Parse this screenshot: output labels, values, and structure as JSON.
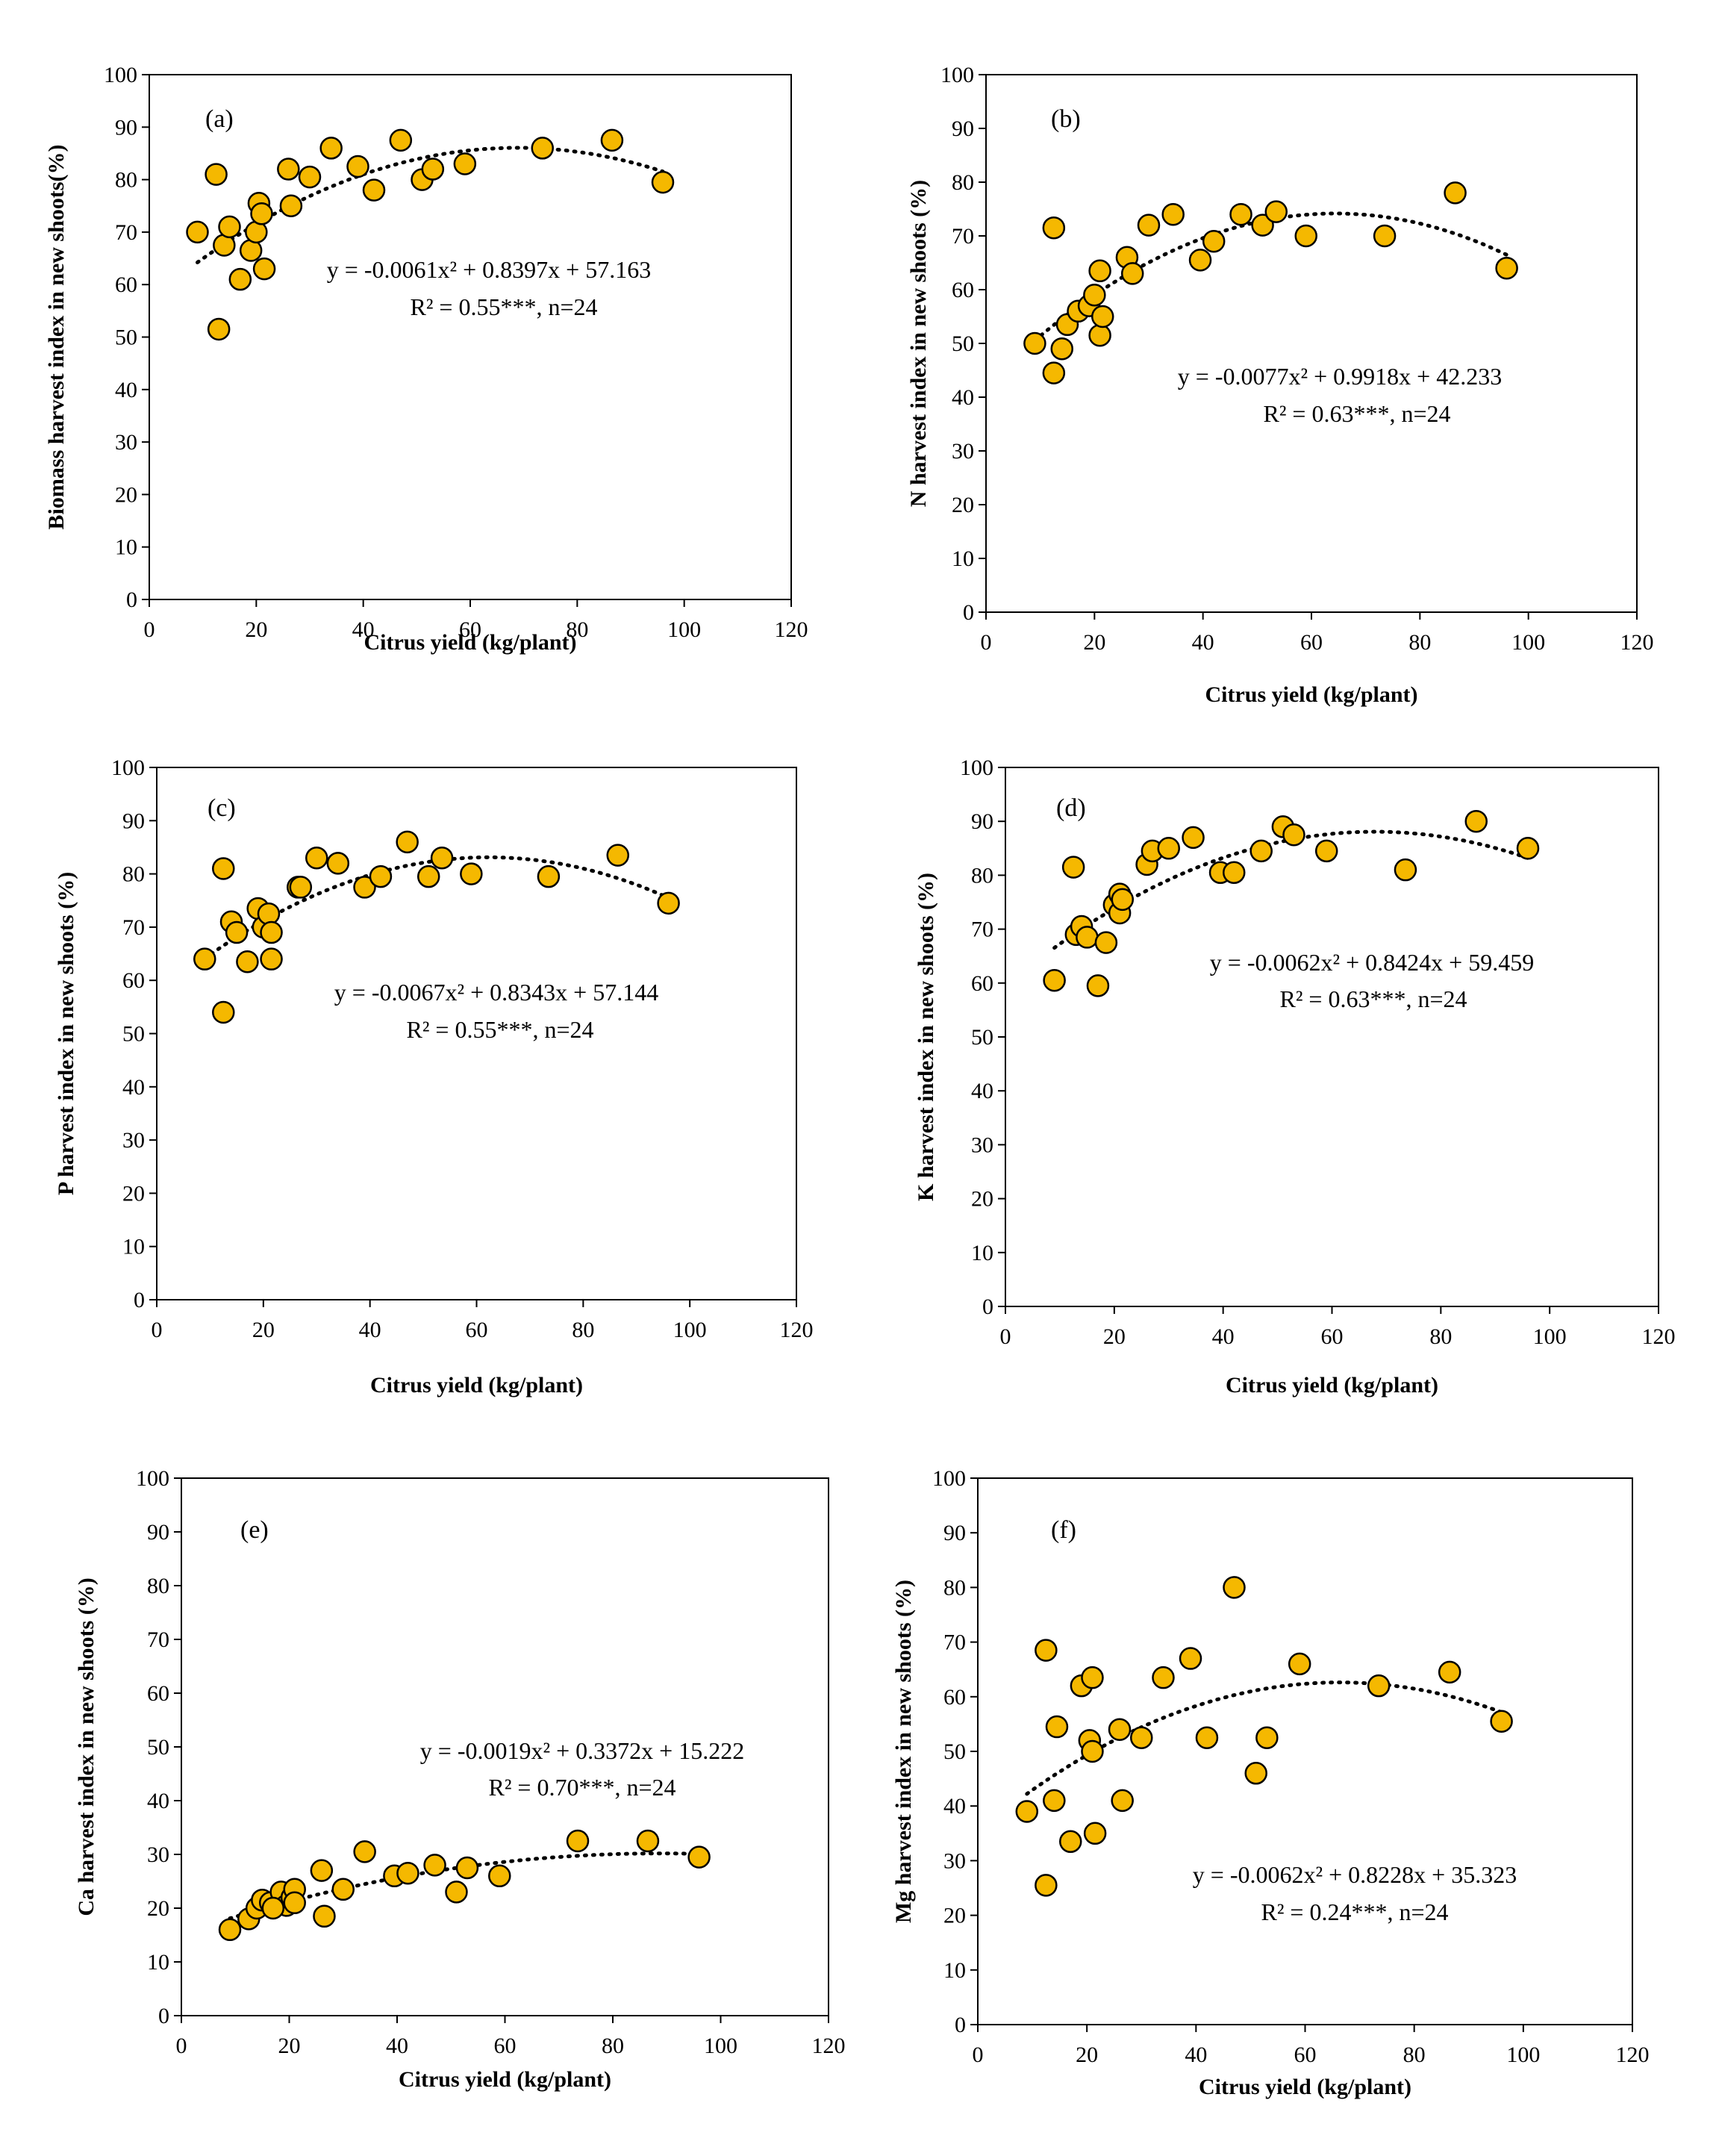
{
  "chart_data": [
    {
      "type": "scatter",
      "panel": "(a)",
      "xlabel": "Citrus yield (kg/plant)",
      "ylabel": "Biomass harvest index in new shoots(%)",
      "xlim": [
        0,
        120
      ],
      "ylim": [
        0,
        100
      ],
      "xticks": [
        0,
        20,
        40,
        60,
        80,
        100,
        120
      ],
      "yticks": [
        0,
        10,
        20,
        30,
        40,
        50,
        60,
        70,
        80,
        90,
        100
      ],
      "equation": "y = -0.0061x² + 0.8397x + 57.163",
      "r2": "R² = 0.55***, n=24",
      "fit": {
        "a": -0.0061,
        "b": 0.8397,
        "c": 57.163,
        "x_range": [
          9,
          96
        ]
      },
      "points": [
        {
          "x": 9,
          "y": 70
        },
        {
          "x": 12.5,
          "y": 81
        },
        {
          "x": 13,
          "y": 51.5
        },
        {
          "x": 14,
          "y": 67.5
        },
        {
          "x": 15,
          "y": 71
        },
        {
          "x": 17,
          "y": 61
        },
        {
          "x": 19,
          "y": 66.5
        },
        {
          "x": 20,
          "y": 70
        },
        {
          "x": 20.5,
          "y": 75.5
        },
        {
          "x": 21,
          "y": 73.5
        },
        {
          "x": 21.5,
          "y": 63
        },
        {
          "x": 26,
          "y": 82
        },
        {
          "x": 26.5,
          "y": 75
        },
        {
          "x": 30,
          "y": 80.5
        },
        {
          "x": 34,
          "y": 86
        },
        {
          "x": 39,
          "y": 82.5
        },
        {
          "x": 42,
          "y": 78
        },
        {
          "x": 47,
          "y": 87.5
        },
        {
          "x": 51,
          "y": 80
        },
        {
          "x": 53,
          "y": 82
        },
        {
          "x": 59,
          "y": 83
        },
        {
          "x": 73.5,
          "y": 86
        },
        {
          "x": 86.5,
          "y": 87.5
        },
        {
          "x": 96,
          "y": 79.5
        }
      ]
    },
    {
      "type": "scatter",
      "panel": "(b)",
      "xlabel": "Citrus yield (kg/plant)",
      "ylabel": "N harvest index in new shoots (%)",
      "xlim": [
        0,
        120
      ],
      "ylim": [
        0,
        100
      ],
      "xticks": [
        0,
        20,
        40,
        60,
        80,
        100,
        120
      ],
      "yticks": [
        0,
        10,
        20,
        30,
        40,
        50,
        60,
        70,
        80,
        90,
        100
      ],
      "equation": "y = -0.0077x² + 0.9918x + 42.233",
      "r2": "R² = 0.63***, n=24",
      "fit": {
        "a": -0.0077,
        "b": 0.9918,
        "c": 42.233,
        "x_range": [
          9,
          96
        ]
      },
      "points": [
        {
          "x": 9,
          "y": 50
        },
        {
          "x": 12.5,
          "y": 71.5
        },
        {
          "x": 12.5,
          "y": 44.5
        },
        {
          "x": 14,
          "y": 49
        },
        {
          "x": 15,
          "y": 53.5
        },
        {
          "x": 17,
          "y": 56
        },
        {
          "x": 19,
          "y": 57
        },
        {
          "x": 20,
          "y": 59
        },
        {
          "x": 21,
          "y": 63.5
        },
        {
          "x": 21,
          "y": 51.5
        },
        {
          "x": 21.5,
          "y": 55
        },
        {
          "x": 26,
          "y": 66
        },
        {
          "x": 27,
          "y": 63
        },
        {
          "x": 30,
          "y": 72
        },
        {
          "x": 34.5,
          "y": 74
        },
        {
          "x": 39.5,
          "y": 65.5
        },
        {
          "x": 42,
          "y": 69
        },
        {
          "x": 47,
          "y": 74
        },
        {
          "x": 51,
          "y": 72
        },
        {
          "x": 53.5,
          "y": 74.5
        },
        {
          "x": 59,
          "y": 70
        },
        {
          "x": 73.5,
          "y": 70
        },
        {
          "x": 86.5,
          "y": 78
        },
        {
          "x": 96,
          "y": 64
        }
      ]
    },
    {
      "type": "scatter",
      "panel": "(c)",
      "xlabel": "Citrus yield (kg/plant)",
      "ylabel": "P harvest index in new shoots (%)",
      "xlim": [
        0,
        120
      ],
      "ylim": [
        0,
        100
      ],
      "xticks": [
        0,
        20,
        40,
        60,
        80,
        100,
        120
      ],
      "yticks": [
        0,
        10,
        20,
        30,
        40,
        50,
        60,
        70,
        80,
        90,
        100
      ],
      "equation": "y = -0.0067x² + 0.8343x + 57.144",
      "r2": "R² = 0.55***, n=24",
      "fit": {
        "a": -0.0067,
        "b": 0.8343,
        "c": 57.144,
        "x_range": [
          9,
          96
        ]
      },
      "points": [
        {
          "x": 9,
          "y": 64
        },
        {
          "x": 12.5,
          "y": 81
        },
        {
          "x": 12.5,
          "y": 54
        },
        {
          "x": 14,
          "y": 71
        },
        {
          "x": 15,
          "y": 69
        },
        {
          "x": 17,
          "y": 63.5
        },
        {
          "x": 19,
          "y": 73.5
        },
        {
          "x": 20,
          "y": 70
        },
        {
          "x": 21,
          "y": 72.5
        },
        {
          "x": 21.5,
          "y": 69
        },
        {
          "x": 21.5,
          "y": 64
        },
        {
          "x": 26.5,
          "y": 77.5
        },
        {
          "x": 27,
          "y": 77.5
        },
        {
          "x": 30,
          "y": 83
        },
        {
          "x": 34,
          "y": 82
        },
        {
          "x": 39,
          "y": 77.5
        },
        {
          "x": 42,
          "y": 79.5
        },
        {
          "x": 47,
          "y": 86
        },
        {
          "x": 51,
          "y": 79.5
        },
        {
          "x": 53.5,
          "y": 83
        },
        {
          "x": 59,
          "y": 80
        },
        {
          "x": 73.5,
          "y": 79.5
        },
        {
          "x": 86.5,
          "y": 83.5
        },
        {
          "x": 96,
          "y": 74.5
        }
      ]
    },
    {
      "type": "scatter",
      "panel": "(d)",
      "xlabel": "Citrus yield (kg/plant)",
      "ylabel": "K harvest index in new shoots (%)",
      "xlim": [
        0,
        120
      ],
      "ylim": [
        0,
        100
      ],
      "xticks": [
        0,
        20,
        40,
        60,
        80,
        100,
        120
      ],
      "yticks": [
        0,
        10,
        20,
        30,
        40,
        50,
        60,
        70,
        80,
        90,
        100
      ],
      "equation": "y = -0.0062x² + 0.8424x + 59.459",
      "r2": "R² = 0.63***, n=24",
      "fit": {
        "a": -0.0062,
        "b": 0.8424,
        "c": 59.459,
        "x_range": [
          9,
          96
        ]
      },
      "points": [
        {
          "x": 9,
          "y": 60.5
        },
        {
          "x": 12.5,
          "y": 81.5
        },
        {
          "x": 13,
          "y": 69
        },
        {
          "x": 14,
          "y": 70.5
        },
        {
          "x": 15,
          "y": 68.5
        },
        {
          "x": 17,
          "y": 59.5
        },
        {
          "x": 18.5,
          "y": 67.5
        },
        {
          "x": 20,
          "y": 74.5
        },
        {
          "x": 21,
          "y": 76.5
        },
        {
          "x": 21,
          "y": 73
        },
        {
          "x": 21.5,
          "y": 75.5
        },
        {
          "x": 26,
          "y": 82
        },
        {
          "x": 27,
          "y": 84.5
        },
        {
          "x": 30,
          "y": 85
        },
        {
          "x": 34.5,
          "y": 87
        },
        {
          "x": 39.5,
          "y": 80.5
        },
        {
          "x": 42,
          "y": 80.5
        },
        {
          "x": 47,
          "y": 84.5
        },
        {
          "x": 51,
          "y": 89
        },
        {
          "x": 53,
          "y": 87.5
        },
        {
          "x": 59,
          "y": 84.5
        },
        {
          "x": 73.5,
          "y": 81
        },
        {
          "x": 86.5,
          "y": 90
        },
        {
          "x": 96,
          "y": 85
        }
      ]
    },
    {
      "type": "scatter",
      "panel": "(e)",
      "xlabel": "Citrus yield (kg/plant)",
      "ylabel": "Ca harvest index in new shoots (%)",
      "xlim": [
        0,
        120
      ],
      "ylim": [
        0,
        100
      ],
      "xticks": [
        0,
        20,
        40,
        60,
        80,
        100,
        120
      ],
      "yticks": [
        0,
        10,
        20,
        30,
        40,
        50,
        60,
        70,
        80,
        90,
        100
      ],
      "equation": "y = -0.0019x² + 0.3372x + 15.222",
      "r2": "R² = 0.70***, n=24",
      "fit": {
        "a": -0.0019,
        "b": 0.3372,
        "c": 15.222,
        "x_range": [
          9,
          96
        ]
      },
      "points": [
        {
          "x": 9,
          "y": 16
        },
        {
          "x": 12.5,
          "y": 18
        },
        {
          "x": 14,
          "y": 20
        },
        {
          "x": 15,
          "y": 21.5
        },
        {
          "x": 16.5,
          "y": 21
        },
        {
          "x": 18.5,
          "y": 23
        },
        {
          "x": 19.5,
          "y": 20.5
        },
        {
          "x": 20.5,
          "y": 22
        },
        {
          "x": 21,
          "y": 23.5
        },
        {
          "x": 26,
          "y": 27
        },
        {
          "x": 26.5,
          "y": 18.5
        },
        {
          "x": 30,
          "y": 23.5
        },
        {
          "x": 34,
          "y": 30.5
        },
        {
          "x": 39.5,
          "y": 26
        },
        {
          "x": 42,
          "y": 26.5
        },
        {
          "x": 47,
          "y": 28
        },
        {
          "x": 51,
          "y": 23
        },
        {
          "x": 53,
          "y": 27.5
        },
        {
          "x": 59,
          "y": 26
        },
        {
          "x": 73.5,
          "y": 32.5
        },
        {
          "x": 86.5,
          "y": 32.5
        },
        {
          "x": 96,
          "y": 29.5
        },
        {
          "x": 21,
          "y": 21
        },
        {
          "x": 17,
          "y": 20
        }
      ]
    },
    {
      "type": "scatter",
      "panel": "(f)",
      "xlabel": "Citrus yield (kg/plant)",
      "ylabel": "Mg harvest index in new shoots (%)",
      "xlim": [
        0,
        120
      ],
      "ylim": [
        0,
        100
      ],
      "xticks": [
        0,
        20,
        40,
        60,
        80,
        100,
        120
      ],
      "yticks": [
        0,
        10,
        20,
        30,
        40,
        50,
        60,
        70,
        80,
        90,
        100
      ],
      "equation": "y = -0.0062x² + 0.8228x + 35.323",
      "r2": "R² = 0.24***, n=24",
      "fit": {
        "a": -0.0062,
        "b": 0.8228,
        "c": 35.323,
        "x_range": [
          9,
          96
        ]
      },
      "points": [
        {
          "x": 9,
          "y": 39
        },
        {
          "x": 12.5,
          "y": 68.5
        },
        {
          "x": 12.5,
          "y": 25.5
        },
        {
          "x": 14,
          "y": 41
        },
        {
          "x": 14.5,
          "y": 54.5
        },
        {
          "x": 17,
          "y": 33.5
        },
        {
          "x": 19,
          "y": 62
        },
        {
          "x": 20.5,
          "y": 52
        },
        {
          "x": 21,
          "y": 63.5
        },
        {
          "x": 21,
          "y": 50
        },
        {
          "x": 21.5,
          "y": 35
        },
        {
          "x": 26,
          "y": 54
        },
        {
          "x": 26.5,
          "y": 41
        },
        {
          "x": 30,
          "y": 52.5
        },
        {
          "x": 34,
          "y": 63.5
        },
        {
          "x": 39,
          "y": 67
        },
        {
          "x": 42,
          "y": 52.5
        },
        {
          "x": 47,
          "y": 80
        },
        {
          "x": 51,
          "y": 46
        },
        {
          "x": 53,
          "y": 52.5
        },
        {
          "x": 59,
          "y": 66
        },
        {
          "x": 73.5,
          "y": 62
        },
        {
          "x": 86.5,
          "y": 64.5
        },
        {
          "x": 96,
          "y": 55.5
        }
      ]
    }
  ]
}
